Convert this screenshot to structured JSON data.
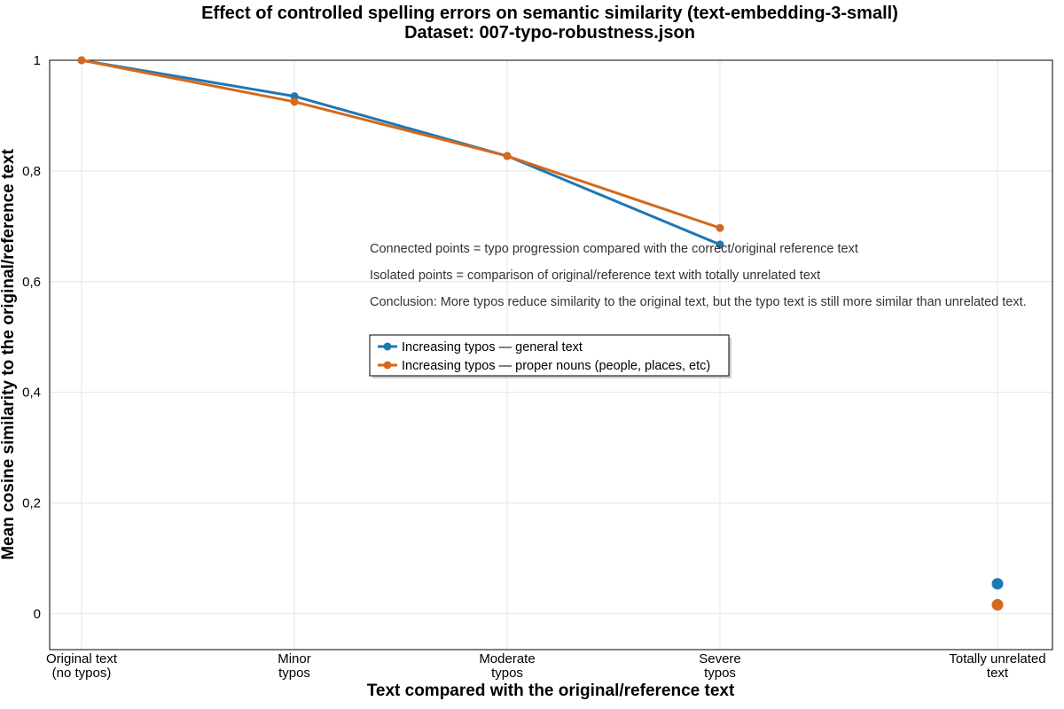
{
  "chart_data": {
    "type": "line",
    "title": "Effect of controlled spelling errors on semantic similarity (text-embedding-3-small)",
    "subtitle": "Dataset: 007-typo-robustness.json",
    "xlabel": "Text compared with the original/reference text",
    "ylabel": "Mean cosine similarity to the original/reference text",
    "ylim": [
      -0.065,
      1.0
    ],
    "yticks": [
      "0",
      "0,2",
      "0,4",
      "0,6",
      "0,8",
      "1"
    ],
    "yticks_values": [
      0,
      0.2,
      0.4,
      0.6,
      0.8,
      1
    ],
    "categories": [
      [
        "Original text",
        "(no typos)"
      ],
      [
        "Minor",
        "typos"
      ],
      [
        "Moderate",
        "typos"
      ],
      [
        "Severe",
        "typos"
      ],
      [
        "Totally unrelated",
        "text"
      ]
    ],
    "grid": true,
    "legend_position": "center",
    "series": [
      {
        "name": "Increasing typos — general text",
        "color": "#1f77b4",
        "connected": [
          1.0,
          0.935,
          0.827,
          0.667
        ],
        "isolated": 0.054
      },
      {
        "name": "Increasing typos — proper nouns (people, places, etc)",
        "color": "#d2691e",
        "connected": [
          1.0,
          0.925,
          0.827,
          0.697
        ],
        "isolated": 0.016
      }
    ],
    "annotations": [
      "Connected points = typo progression compared with the correct/original reference text",
      "Isolated points = comparison of original/reference text with totally unrelated text",
      "Conclusion: More typos reduce similarity to the original text, but the typo text is still more similar than unrelated text."
    ]
  }
}
